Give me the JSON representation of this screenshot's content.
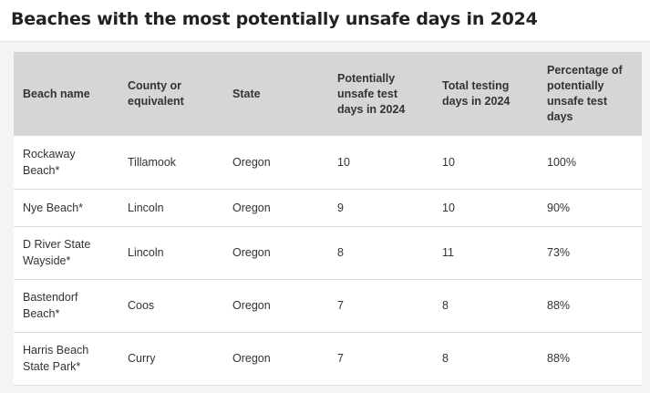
{
  "title": "Beaches with the most potentially unsafe days in 2024",
  "columns": [
    "Beach name",
    "County or equivalent",
    "State",
    "Potentially unsafe test days in 2024",
    "Total testing days in 2024",
    "Percentage of potentially unsafe test days"
  ],
  "rows": [
    {
      "beach": "Rockaway Beach*",
      "county": "Tillamook",
      "state": "Oregon",
      "unsafe": "10",
      "total": "10",
      "pct": "100%"
    },
    {
      "beach": "Nye Beach*",
      "county": "Lincoln",
      "state": "Oregon",
      "unsafe": "9",
      "total": "10",
      "pct": "90%"
    },
    {
      "beach": "D River State Wayside*",
      "county": "Lincoln",
      "state": "Oregon",
      "unsafe": "8",
      "total": "11",
      "pct": "73%"
    },
    {
      "beach": "Bastendorf Beach*",
      "county": "Coos",
      "state": "Oregon",
      "unsafe": "7",
      "total": "8",
      "pct": "88%"
    },
    {
      "beach": "Harris Beach State Park*",
      "county": "Curry",
      "state": "Oregon",
      "unsafe": "7",
      "total": "8",
      "pct": "88%"
    }
  ]
}
